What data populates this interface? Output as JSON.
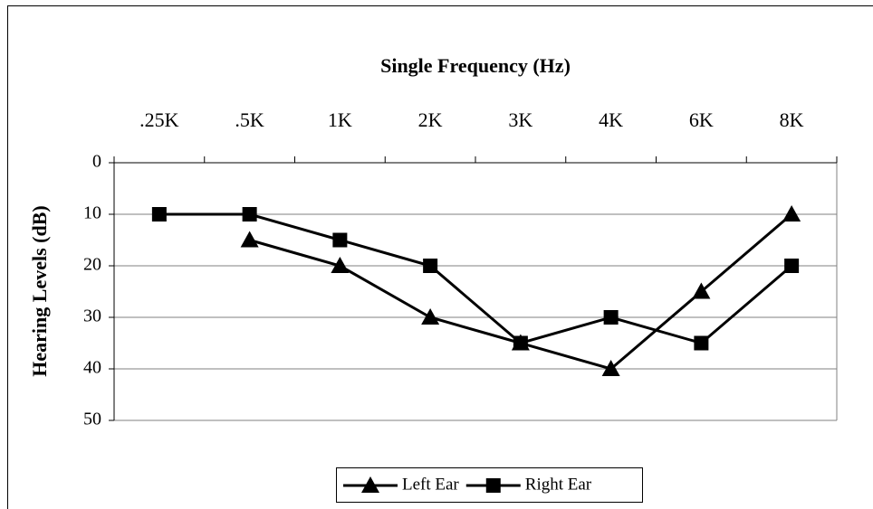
{
  "chart_data": {
    "type": "line",
    "title": "Single Frequency (Hz)",
    "y_label": "Hearing Levels (dB)",
    "categories": [
      ".25K",
      ".5K",
      "1K",
      "2K",
      "3K",
      "4K",
      "6K",
      "8K"
    ],
    "x_axis_position": "top",
    "y_inverted": true,
    "ylim": [
      0,
      50
    ],
    "yticks": [
      0,
      10,
      20,
      30,
      40,
      50
    ],
    "grid": true,
    "legend": "bottom",
    "series": [
      {
        "name": "Left Ear",
        "color": "#000000",
        "marker": "triangle",
        "values": [
          null,
          15,
          20,
          30,
          35,
          40,
          25,
          10
        ]
      },
      {
        "name": "Right Ear",
        "color": "#000000",
        "marker": "square",
        "values": [
          10,
          10,
          15,
          20,
          35,
          30,
          35,
          20
        ]
      }
    ]
  }
}
